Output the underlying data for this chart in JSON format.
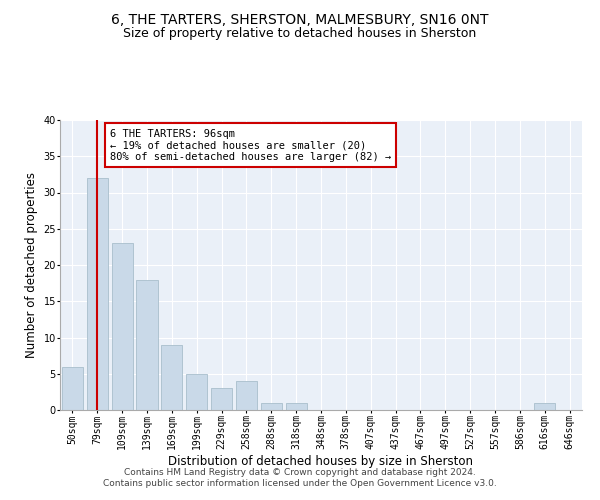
{
  "title": "6, THE TARTERS, SHERSTON, MALMESBURY, SN16 0NT",
  "subtitle": "Size of property relative to detached houses in Sherston",
  "xlabel": "Distribution of detached houses by size in Sherston",
  "ylabel": "Number of detached properties",
  "categories": [
    "50sqm",
    "79sqm",
    "109sqm",
    "139sqm",
    "169sqm",
    "199sqm",
    "229sqm",
    "258sqm",
    "288sqm",
    "318sqm",
    "348sqm",
    "378sqm",
    "407sqm",
    "437sqm",
    "467sqm",
    "497sqm",
    "527sqm",
    "557sqm",
    "586sqm",
    "616sqm",
    "646sqm"
  ],
  "values": [
    6,
    32,
    23,
    18,
    9,
    5,
    3,
    4,
    1,
    1,
    0,
    0,
    0,
    0,
    0,
    0,
    0,
    0,
    0,
    1,
    0
  ],
  "bar_color": "#c9d9e8",
  "bar_edge_color": "#a8becc",
  "vline_x": 1,
  "vline_color": "#cc0000",
  "annotation_text": "6 THE TARTERS: 96sqm\n← 19% of detached houses are smaller (20)\n80% of semi-detached houses are larger (82) →",
  "annotation_box_color": "#cc0000",
  "ylim": [
    0,
    40
  ],
  "yticks": [
    0,
    5,
    10,
    15,
    20,
    25,
    30,
    35,
    40
  ],
  "background_color": "#eaf0f8",
  "footer_text": "Contains HM Land Registry data © Crown copyright and database right 2024.\nContains public sector information licensed under the Open Government Licence v3.0.",
  "title_fontsize": 10,
  "subtitle_fontsize": 9,
  "xlabel_fontsize": 8.5,
  "ylabel_fontsize": 8.5,
  "tick_fontsize": 7,
  "annotation_fontsize": 7.5,
  "footer_fontsize": 6.5
}
